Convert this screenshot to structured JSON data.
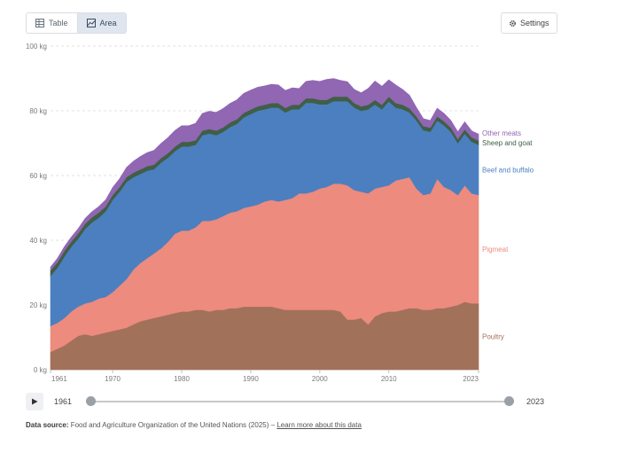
{
  "toolbar": {
    "tabs": [
      {
        "label": "Table",
        "icon": "table-icon",
        "active": false
      },
      {
        "label": "Area",
        "icon": "area-chart-icon",
        "active": true
      }
    ],
    "settings_label": "Settings",
    "settings_icon": "gear-icon"
  },
  "timeline": {
    "start_label": "1961",
    "end_label": "2023",
    "play_icon": "play-icon"
  },
  "source": {
    "prefix": "Data source:",
    "text": "Food and Agriculture Organization of the United Nations (2025)",
    "separator": "–",
    "link": "Learn more about this data"
  },
  "chart_data": {
    "type": "area",
    "stacked": true,
    "title": "",
    "xlabel": "",
    "ylabel": "",
    "ylim": [
      0,
      100
    ],
    "y_unit": "kg",
    "yticks": [
      "0 kg",
      "20 kg",
      "40 kg",
      "60 kg",
      "80 kg",
      "100 kg"
    ],
    "xticks": [
      "1961",
      "1970",
      "1980",
      "1990",
      "2000",
      "2010",
      "2023"
    ],
    "grid": true,
    "legend": "right-inline",
    "x": [
      1961,
      1962,
      1963,
      1964,
      1965,
      1966,
      1967,
      1968,
      1969,
      1970,
      1971,
      1972,
      1973,
      1974,
      1975,
      1976,
      1977,
      1978,
      1979,
      1980,
      1981,
      1982,
      1983,
      1984,
      1985,
      1986,
      1987,
      1988,
      1989,
      1990,
      1991,
      1992,
      1993,
      1994,
      1995,
      1996,
      1997,
      1998,
      1999,
      2000,
      2001,
      2002,
      2003,
      2004,
      2005,
      2006,
      2007,
      2008,
      2009,
      2010,
      2011,
      2012,
      2013,
      2014,
      2015,
      2016,
      2017,
      2018,
      2019,
      2020,
      2021,
      2022,
      2023
    ],
    "series": [
      {
        "name": "Poultry",
        "color": "#a2715a",
        "values": [
          5.5,
          6.5,
          7.5,
          9.0,
          10.5,
          11.0,
          10.5,
          11.0,
          11.5,
          12.0,
          12.5,
          13.0,
          14.0,
          15.0,
          15.5,
          16.0,
          16.5,
          17.0,
          17.5,
          18.0,
          18.0,
          18.5,
          18.5,
          18.0,
          18.5,
          18.5,
          19.0,
          19.0,
          19.5,
          19.5,
          19.5,
          19.5,
          19.5,
          19.0,
          18.5,
          18.5,
          18.5,
          18.5,
          18.5,
          18.5,
          18.5,
          18.5,
          18.0,
          15.5,
          15.5,
          16.0,
          14.0,
          16.5,
          17.5,
          18.0,
          18.0,
          18.5,
          19.0,
          19.0,
          18.5,
          18.5,
          19.0,
          19.0,
          19.5,
          20.0,
          21.0,
          20.5,
          20.5
        ]
      },
      {
        "name": "Pigmeat",
        "color": "#ec8b7e",
        "values": [
          8.0,
          8.0,
          8.5,
          9.0,
          9.0,
          9.5,
          10.5,
          11.0,
          11.0,
          12.0,
          13.5,
          15.0,
          17.0,
          18.0,
          19.0,
          20.0,
          21.0,
          22.5,
          24.5,
          25.0,
          25.0,
          25.5,
          27.5,
          28.0,
          28.0,
          29.0,
          29.5,
          30.0,
          30.5,
          31.0,
          31.5,
          32.5,
          33.0,
          33.0,
          34.0,
          34.5,
          36.0,
          36.0,
          36.5,
          37.5,
          38.0,
          39.0,
          39.5,
          41.5,
          40.0,
          39.0,
          40.5,
          39.5,
          39.0,
          39.0,
          40.5,
          40.5,
          40.5,
          37.0,
          35.5,
          36.0,
          40.0,
          37.5,
          36.0,
          34.0,
          36.0,
          34.0,
          33.5
        ]
      },
      {
        "name": "Beef and buffalo",
        "color": "#4c7fc0",
        "values": [
          15.5,
          17.0,
          19.0,
          20.0,
          21.0,
          23.0,
          24.5,
          25.0,
          26.5,
          28.5,
          29.0,
          30.0,
          28.5,
          27.5,
          27.0,
          26.0,
          26.5,
          26.0,
          25.5,
          26.0,
          26.0,
          25.5,
          26.5,
          27.0,
          26.0,
          26.0,
          26.5,
          27.0,
          28.0,
          28.5,
          29.0,
          28.5,
          28.5,
          29.0,
          27.0,
          27.5,
          26.0,
          28.0,
          27.5,
          26.0,
          25.5,
          25.5,
          25.5,
          26.0,
          25.5,
          25.0,
          26.0,
          26.0,
          24.0,
          26.0,
          22.5,
          21.5,
          20.0,
          21.0,
          20.0,
          19.0,
          18.0,
          19.0,
          18.0,
          16.0,
          16.0,
          16.0,
          15.5
        ]
      },
      {
        "name": "Sheep and goat",
        "color": "#3f5f46",
        "values": [
          1.7,
          1.7,
          1.7,
          1.6,
          1.6,
          1.6,
          1.6,
          1.6,
          1.5,
          1.5,
          1.5,
          1.5,
          1.4,
          1.4,
          1.4,
          1.4,
          1.4,
          1.4,
          1.4,
          1.4,
          1.4,
          1.4,
          1.4,
          1.4,
          1.4,
          1.4,
          1.4,
          1.4,
          1.4,
          1.4,
          1.4,
          1.4,
          1.4,
          1.4,
          1.4,
          1.4,
          1.4,
          1.4,
          1.4,
          1.4,
          1.4,
          1.4,
          1.4,
          1.4,
          1.4,
          1.4,
          1.4,
          1.4,
          1.4,
          1.4,
          1.4,
          1.4,
          1.3,
          1.3,
          1.3,
          1.3,
          1.3,
          1.3,
          1.3,
          1.3,
          1.3,
          1.3,
          1.3
        ]
      },
      {
        "name": "Other meats",
        "color": "#9166b3",
        "values": [
          1.0,
          1.2,
          1.3,
          1.4,
          1.5,
          1.6,
          1.7,
          1.8,
          2.0,
          2.3,
          2.5,
          3.0,
          3.5,
          4.0,
          4.2,
          4.4,
          4.5,
          4.8,
          5.0,
          5.0,
          5.0,
          5.2,
          5.3,
          5.5,
          5.6,
          5.8,
          5.9,
          6.0,
          6.0,
          6.0,
          5.9,
          5.8,
          5.8,
          5.6,
          5.4,
          5.2,
          5.0,
          5.2,
          5.5,
          5.7,
          6.3,
          5.6,
          5.0,
          4.6,
          4.2,
          4.2,
          5.0,
          5.8,
          5.7,
          5.2,
          5.6,
          4.7,
          4.0,
          2.7,
          2.3,
          2.2,
          2.5,
          2.4,
          2.2,
          2.2,
          2.3,
          2.0,
          2.0
        ]
      }
    ]
  }
}
